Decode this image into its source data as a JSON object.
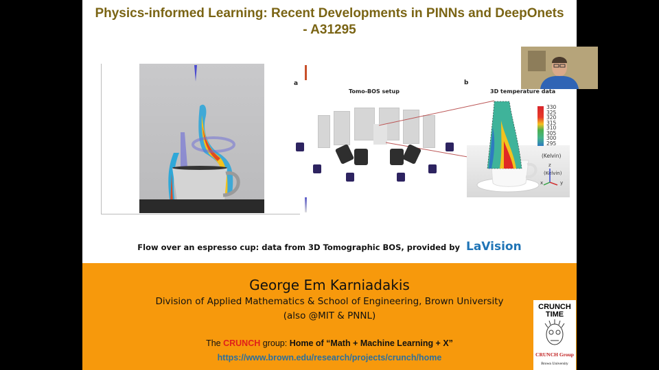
{
  "slide": {
    "title_line1": "Physics-informed Learning: Recent Developments in PINNs and DeepOnets",
    "title_line2": "- A31295",
    "panel_a_label": "a",
    "panel_b_label": "b",
    "panel_a_title": "Tomo-BOS setup",
    "panel_b_title": "3D temperature data",
    "temperature_legend": [
      "330",
      "325",
      "320",
      "315",
      "310",
      "305",
      "300",
      "295"
    ],
    "temperature_unit": "(Kelvin)",
    "axes_labels": {
      "z": "z",
      "x": "x",
      "y": "y"
    },
    "caption": "Flow over an espresso cup: data from 3D Tomographic BOS, provided by",
    "caption_brand": "LaVision",
    "author": "George Em Karniadakis",
    "affiliation": "Division of Applied Mathematics & School of Engineering,  Brown University",
    "also": "(also @MIT & PNNL)",
    "crunch_prefix": "The",
    "crunch_name": "CRUNCH",
    "crunch_mid": "group:",
    "crunch_tagline": "Home of “Math + Machine Learning + X”",
    "url": "https://www.brown.edu/research/projects/crunch/home",
    "logo": {
      "line1": "CRUNCH",
      "line2": "TIME",
      "group": "CRUNCH Group",
      "university": "Brown University"
    }
  },
  "colors": {
    "title": "#7a6414",
    "orange": "#f7990c",
    "lavision": "#1f74b6",
    "crunch_red": "#e0201a",
    "url": "#2a6f9e"
  }
}
